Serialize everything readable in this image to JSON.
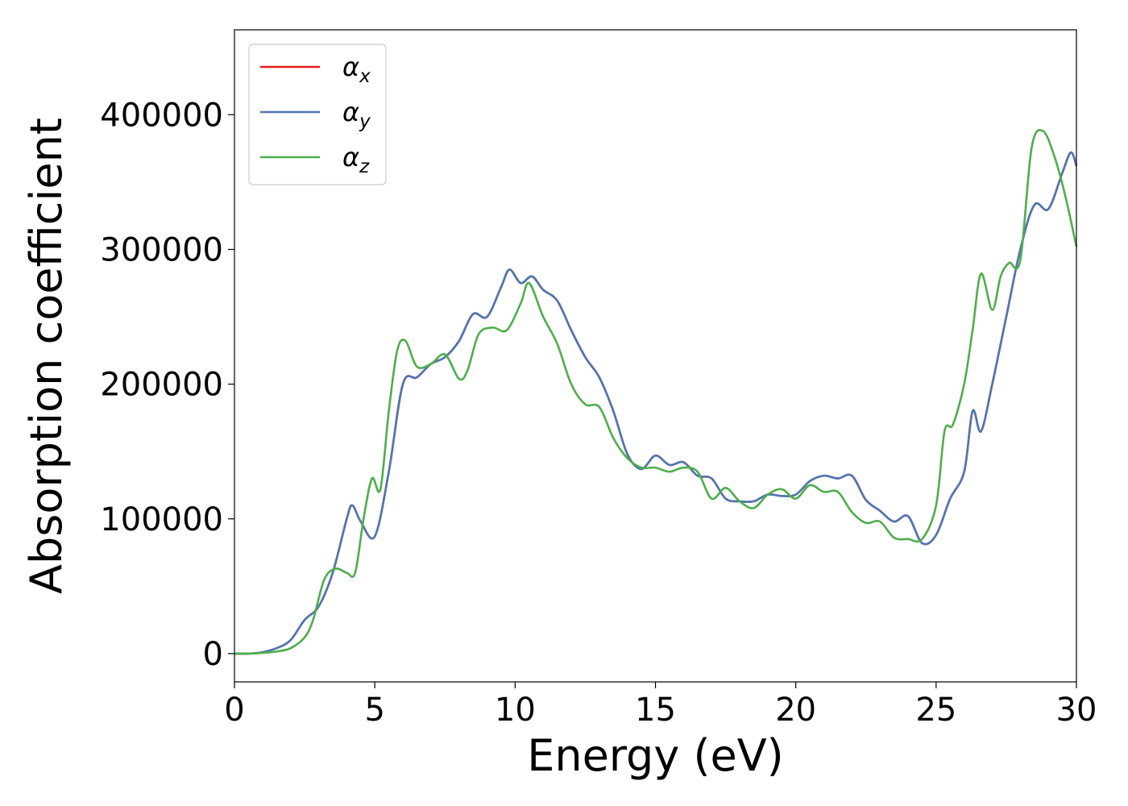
{
  "chart_data": {
    "type": "line",
    "title": "",
    "xlabel": "Energy (eV)",
    "ylabel": "Absorption coefficient",
    "xlim": [
      0,
      30
    ],
    "ylim": [
      -21000,
      463000
    ],
    "xticks": [
      0,
      5,
      10,
      15,
      20,
      25,
      30
    ],
    "yticks": [
      0,
      100000,
      200000,
      300000,
      400000
    ],
    "grid": false,
    "legend_position": "top-left",
    "series": [
      {
        "name": "α_x",
        "label_main": "α",
        "label_sub": "x",
        "color": "#e41a1c",
        "x": [
          0,
          0.5,
          1,
          1.5,
          2,
          2.5,
          3,
          3.5,
          4,
          4.2,
          4.5,
          5,
          5.5,
          6,
          6.5,
          7,
          7.5,
          8,
          8.5,
          9,
          9.5,
          9.8,
          10.2,
          10.6,
          11,
          11.5,
          12,
          12.5,
          13,
          13.5,
          14,
          14.5,
          15,
          15.5,
          16,
          16.5,
          17,
          17.5,
          18,
          18.5,
          19,
          19.5,
          20,
          20.5,
          21,
          21.5,
          22,
          22.5,
          23,
          23.5,
          24,
          24.5,
          25,
          25.5,
          26,
          26.3,
          26.6,
          27,
          27.5,
          28,
          28.5,
          29,
          29.5,
          29.8,
          30
        ],
        "values": [
          0,
          0,
          1000,
          4000,
          10000,
          25000,
          35000,
          60000,
          100000,
          110000,
          98000,
          87000,
          135000,
          200000,
          205000,
          215000,
          220000,
          232000,
          252000,
          250000,
          272000,
          285000,
          275000,
          280000,
          270000,
          262000,
          240000,
          220000,
          205000,
          180000,
          148000,
          137000,
          147000,
          140000,
          142000,
          132000,
          130000,
          115000,
          113000,
          113000,
          118000,
          117000,
          118000,
          128000,
          132000,
          130000,
          132000,
          114000,
          106000,
          98000,
          102000,
          82000,
          88000,
          115000,
          135000,
          180000,
          165000,
          200000,
          250000,
          300000,
          333000,
          330000,
          357000,
          372000,
          362000
        ]
      },
      {
        "name": "α_y",
        "label_main": "α",
        "label_sub": "y",
        "color": "#4c78b4",
        "x": [
          0,
          0.5,
          1,
          1.5,
          2,
          2.5,
          3,
          3.5,
          4,
          4.2,
          4.5,
          5,
          5.5,
          6,
          6.5,
          7,
          7.5,
          8,
          8.5,
          9,
          9.5,
          9.8,
          10.2,
          10.6,
          11,
          11.5,
          12,
          12.5,
          13,
          13.5,
          14,
          14.5,
          15,
          15.5,
          16,
          16.5,
          17,
          17.5,
          18,
          18.5,
          19,
          19.5,
          20,
          20.5,
          21,
          21.5,
          22,
          22.5,
          23,
          23.5,
          24,
          24.5,
          25,
          25.5,
          26,
          26.3,
          26.6,
          27,
          27.5,
          28,
          28.5,
          29,
          29.5,
          29.8,
          30
        ],
        "values": [
          0,
          0,
          1000,
          4000,
          10000,
          25000,
          35000,
          60000,
          100000,
          110000,
          98000,
          87000,
          135000,
          200000,
          205000,
          215000,
          220000,
          232000,
          252000,
          250000,
          272000,
          285000,
          275000,
          280000,
          270000,
          262000,
          240000,
          220000,
          205000,
          180000,
          148000,
          137000,
          147000,
          140000,
          142000,
          132000,
          130000,
          115000,
          113000,
          113000,
          118000,
          117000,
          118000,
          128000,
          132000,
          130000,
          132000,
          114000,
          106000,
          98000,
          102000,
          82000,
          88000,
          115000,
          135000,
          180000,
          165000,
          200000,
          250000,
          300000,
          333000,
          330000,
          357000,
          372000,
          362000
        ]
      },
      {
        "name": "α_z",
        "label_main": "α",
        "label_sub": "z",
        "color": "#4daf4a",
        "x": [
          0,
          0.5,
          1,
          1.5,
          2,
          2.5,
          2.8,
          3.2,
          3.6,
          4,
          4.3,
          4.6,
          4.9,
          5.2,
          5.5,
          5.8,
          6.1,
          6.5,
          7,
          7.5,
          8,
          8.3,
          8.7,
          9.2,
          9.7,
          10.2,
          10.5,
          11,
          11.5,
          12,
          12.5,
          13,
          13.5,
          14,
          14.5,
          15,
          15.5,
          16,
          16.5,
          17,
          17.5,
          18,
          18.5,
          19,
          19.5,
          20,
          20.5,
          21,
          21.5,
          22,
          22.5,
          23,
          23.5,
          24,
          24.5,
          25,
          25.3,
          25.6,
          26,
          26.3,
          26.6,
          27,
          27.3,
          27.6,
          28,
          28.4,
          28.8,
          29.2,
          29.6,
          30
        ],
        "values": [
          0,
          0,
          500,
          1500,
          4000,
          12000,
          25000,
          55000,
          63000,
          60000,
          60000,
          100000,
          130000,
          122000,
          180000,
          225000,
          232000,
          213000,
          215000,
          222000,
          204000,
          210000,
          237000,
          242000,
          240000,
          260000,
          275000,
          250000,
          230000,
          200000,
          185000,
          183000,
          160000,
          145000,
          138000,
          138000,
          135000,
          138000,
          135000,
          115000,
          123000,
          113000,
          108000,
          118000,
          122000,
          115000,
          125000,
          120000,
          120000,
          105000,
          97000,
          98000,
          86000,
          85000,
          85000,
          110000,
          165000,
          170000,
          200000,
          240000,
          282000,
          255000,
          280000,
          290000,
          292000,
          375000,
          388000,
          370000,
          340000,
          302000
        ]
      }
    ]
  }
}
